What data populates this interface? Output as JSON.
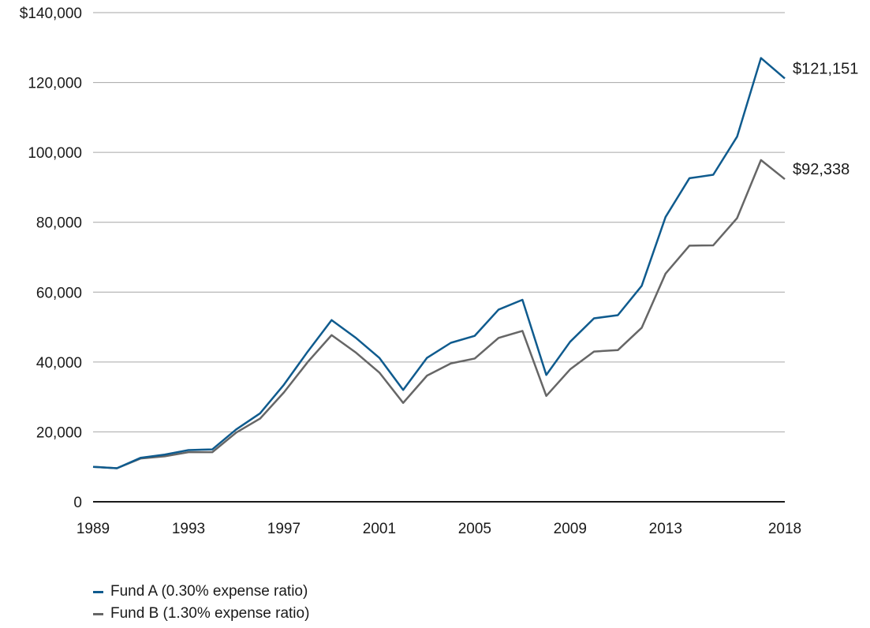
{
  "chart_data": {
    "type": "line",
    "title": "",
    "xlabel": "",
    "ylabel": "",
    "x": [
      1989,
      1990,
      1991,
      1992,
      1993,
      1994,
      1995,
      1996,
      1997,
      1998,
      1999,
      2000,
      2001,
      2002,
      2003,
      2004,
      2005,
      2006,
      2007,
      2008,
      2009,
      2010,
      2011,
      2012,
      2013,
      2014,
      2015,
      2016,
      2017,
      2018
    ],
    "x_ticks": [
      1989,
      1993,
      1997,
      2001,
      2005,
      2009,
      2013,
      2018
    ],
    "y_ticks": [
      {
        "value": 0,
        "label": "0"
      },
      {
        "value": 20000,
        "label": "20,000"
      },
      {
        "value": 40000,
        "label": "40,000"
      },
      {
        "value": 60000,
        "label": "60,000"
      },
      {
        "value": 80000,
        "label": "80,000"
      },
      {
        "value": 100000,
        "label": "100,000"
      },
      {
        "value": 120000,
        "label": "120,000"
      },
      {
        "value": 140000,
        "label": "$140,000"
      }
    ],
    "ylim": [
      0,
      140000
    ],
    "xlim": [
      1989,
      2018
    ],
    "grid": true,
    "legend_position": "bottom-left",
    "series": [
      {
        "name": "Fund A (0.30% expense ratio)",
        "color": "#0f5b8e",
        "end_label": "$121,151",
        "values": [
          10000,
          9600,
          12600,
          13500,
          14800,
          15000,
          20700,
          25300,
          33500,
          43000,
          52000,
          47000,
          41200,
          32000,
          41200,
          45500,
          47500,
          55000,
          57800,
          36300,
          45800,
          52500,
          53400,
          61800,
          81500,
          92600,
          93600,
          104500,
          127000,
          121151
        ]
      },
      {
        "name": "Fund B (1.30% expense ratio)",
        "color": "#666666",
        "end_label": "$92,338",
        "values": [
          10000,
          9600,
          12400,
          13000,
          14200,
          14200,
          19800,
          23800,
          31300,
          40000,
          47700,
          42800,
          37000,
          28300,
          36100,
          39600,
          41000,
          46900,
          48900,
          30300,
          37900,
          43000,
          43400,
          49800,
          65300,
          73300,
          73400,
          81200,
          97800,
          92338
        ]
      }
    ]
  }
}
